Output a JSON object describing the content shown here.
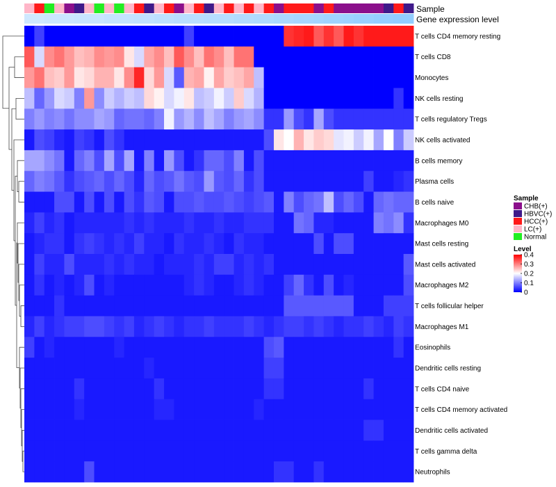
{
  "chart_data": {
    "type": "heatmap",
    "title": "",
    "track_labels": {
      "sample": "Sample",
      "expression": "Gene expression level"
    },
    "rows": [
      "T cells CD4 memory resting",
      "T cells CD8",
      "Monocytes",
      "NK cells resting",
      "T cells regulatory  Tregs",
      "NK cells activated",
      "B cells memory",
      "Plasma cells",
      "B cells naive",
      "Macrophages M0",
      "Mast cells resting",
      "Mast cells activated",
      "Macrophages M2",
      "T cells follicular helper",
      "Macrophages M1",
      "Eosinophils",
      "Dendritic cells resting",
      "T cells CD4 naive",
      "T cells CD4 memory activated",
      "Dendritic cells activated",
      "T cells gamma delta",
      "Neutrophils"
    ],
    "sample_groups": [
      "LC",
      "HCC",
      "Normal",
      "LC",
      "CHB",
      "HBVC",
      "LC",
      "Normal",
      "LC",
      "Normal",
      "LC",
      "HCC",
      "HBVC",
      "LC",
      "HCC",
      "CHB",
      "LC",
      "HCC",
      "HBVC",
      "LC",
      "HCC",
      "LC",
      "HCC",
      "LC",
      "HCC",
      "CHB",
      "HCC",
      "HCC",
      "HCC",
      "CHB",
      "HCC",
      "CHB",
      "CHB",
      "CHB",
      "CHB",
      "CHB",
      "HBVC",
      "HCC",
      "HBVC"
    ],
    "legend_sample": {
      "title": "Sample",
      "entries": [
        {
          "label": "CHB(+)",
          "color": "#8b0f8b"
        },
        {
          "label": "HBVC(+)",
          "color": "#3f1a8a"
        },
        {
          "label": "HCC(+)",
          "color": "#ff1a1a"
        },
        {
          "label": "LC(+)",
          "color": "#ffb6c8"
        },
        {
          "label": "Normal",
          "color": "#22ee22"
        }
      ]
    },
    "legend_level": {
      "title": "Level",
      "range": [
        0,
        0.4
      ],
      "ticks": [
        "0.4",
        "0.3",
        "0.2",
        "0.1",
        "0"
      ],
      "colors": {
        "low": "#0000ff",
        "mid": "#ffffff",
        "high": "#ff0000"
      }
    },
    "expression_level": [
      0.05,
      0.05,
      0.06,
      0.06,
      0.06,
      0.07,
      0.07,
      0.07,
      0.08,
      0.08,
      0.08,
      0.09,
      0.09,
      0.1,
      0.1,
      0.11,
      0.11,
      0.11,
      0.12,
      0.12,
      0.12,
      0.13,
      0.13,
      0.14,
      0.14,
      0.15,
      0.15,
      0.16,
      0.16,
      0.17,
      0.18,
      0.18,
      0.19,
      0.2,
      0.2,
      0.21,
      0.21,
      0.22,
      0.22
    ],
    "values": [
      [
        0,
        0.05,
        0,
        0,
        0,
        0,
        0,
        0,
        0,
        0,
        0,
        0,
        0,
        0,
        0,
        0,
        0.05,
        0,
        0,
        0,
        0,
        0,
        0,
        0,
        0,
        0,
        0.36,
        0.37,
        0.38,
        0.33,
        0.36,
        0.33,
        0.38,
        0.36,
        0.38,
        0.38,
        0.38,
        0.38,
        0.38
      ],
      [
        0.33,
        0.17,
        0.29,
        0.31,
        0.28,
        0.25,
        0.26,
        0.29,
        0.28,
        0.29,
        0.22,
        0.17,
        0.27,
        0.29,
        0.25,
        0.33,
        0.29,
        0.25,
        0.31,
        0.29,
        0.25,
        0.31,
        0.31,
        0,
        0,
        0,
        0,
        0,
        0,
        0,
        0,
        0,
        0,
        0,
        0,
        0,
        0,
        0,
        0
      ],
      [
        0.28,
        0.31,
        0.25,
        0.24,
        0.28,
        0.22,
        0.23,
        0.26,
        0.26,
        0.22,
        0.29,
        0.37,
        0.23,
        0.28,
        0.17,
        0.07,
        0.26,
        0.27,
        0.21,
        0.27,
        0.24,
        0.25,
        0.27,
        0.15,
        0,
        0,
        0,
        0,
        0,
        0,
        0,
        0,
        0,
        0,
        0,
        0,
        0,
        0,
        0
      ],
      [
        0.15,
        0.08,
        0.12,
        0.17,
        0.16,
        0.1,
        0.28,
        0.11,
        0.16,
        0.14,
        0.16,
        0.15,
        0.23,
        0.21,
        0.17,
        0.19,
        0.22,
        0.15,
        0.16,
        0.19,
        0.16,
        0.24,
        0.17,
        0.14,
        0,
        0,
        0,
        0,
        0,
        0,
        0,
        0,
        0,
        0,
        0,
        0,
        0,
        0.04,
        0
      ],
      [
        0.1,
        0.12,
        0.1,
        0.11,
        0.09,
        0.11,
        0.11,
        0.13,
        0.12,
        0.08,
        0.09,
        0.09,
        0.08,
        0.1,
        0.19,
        0.12,
        0.14,
        0.11,
        0.15,
        0.13,
        0.1,
        0.12,
        0.13,
        0.11,
        0.04,
        0.04,
        0.12,
        0.06,
        0.04,
        0.13,
        0.06,
        0.04,
        0.04,
        0.04,
        0.04,
        0.04,
        0.04,
        0.04,
        0.04
      ],
      [
        0.02,
        0.06,
        0.05,
        0.03,
        0.02,
        0.05,
        0.04,
        0.02,
        0.06,
        0.04,
        0.02,
        0.02,
        0.02,
        0.02,
        0.02,
        0.02,
        0.02,
        0.02,
        0.02,
        0.02,
        0.02,
        0.02,
        0.02,
        0.02,
        0.06,
        0.22,
        0.2,
        0.26,
        0.22,
        0.24,
        0.23,
        0.18,
        0.19,
        0.16,
        0.19,
        0.13,
        0.2,
        0.1,
        0.16
      ],
      [
        0.13,
        0.13,
        0.11,
        0.09,
        0.02,
        0.08,
        0.1,
        0.06,
        0.13,
        0.06,
        0.13,
        0.02,
        0.1,
        0.02,
        0.12,
        0.06,
        0.02,
        0.04,
        0.08,
        0.08,
        0.06,
        0.1,
        0.02,
        0.06,
        0.02,
        0.02,
        0.02,
        0.02,
        0.02,
        0.02,
        0.02,
        0.02,
        0.02,
        0.02,
        0.02,
        0.02,
        0.02,
        0.02,
        0.02
      ],
      [
        0.08,
        0.1,
        0.09,
        0.07,
        0.04,
        0.06,
        0.07,
        0.08,
        0.06,
        0.08,
        0.06,
        0.03,
        0.08,
        0.06,
        0.07,
        0.09,
        0.07,
        0.06,
        0.12,
        0.07,
        0.06,
        0.08,
        0.04,
        0.06,
        0.02,
        0.02,
        0.02,
        0.02,
        0.02,
        0.02,
        0.02,
        0.02,
        0.02,
        0.02,
        0.05,
        0.02,
        0.02,
        0.03,
        0.04
      ],
      [
        0.02,
        0.02,
        0.02,
        0.06,
        0.06,
        0.02,
        0.06,
        0.02,
        0.06,
        0.02,
        0.06,
        0.04,
        0.07,
        0.06,
        0.02,
        0.06,
        0.06,
        0.07,
        0.06,
        0.06,
        0.07,
        0.06,
        0.05,
        0.06,
        0.07,
        0.02,
        0.1,
        0.06,
        0.08,
        0.09,
        0.15,
        0.06,
        0.08,
        0.06,
        0.02,
        0.08,
        0.09,
        0.08,
        0.08
      ],
      [
        0.03,
        0.05,
        0.03,
        0.04,
        0.02,
        0.03,
        0.03,
        0.03,
        0.03,
        0.03,
        0.04,
        0.03,
        0.04,
        0.03,
        0.03,
        0.03,
        0.04,
        0.03,
        0.03,
        0.04,
        0.03,
        0.03,
        0.04,
        0.04,
        0.04,
        0.02,
        0.02,
        0.09,
        0.08,
        0.03,
        0.03,
        0.02,
        0.02,
        0.02,
        0.02,
        0.1,
        0.09,
        0.11,
        0.04
      ],
      [
        0.02,
        0.03,
        0.04,
        0.04,
        0.02,
        0.04,
        0.05,
        0.04,
        0.03,
        0.04,
        0.03,
        0.05,
        0.03,
        0.03,
        0.02,
        0.04,
        0.03,
        0.03,
        0.04,
        0.03,
        0.02,
        0.04,
        0.03,
        0.03,
        0.02,
        0.02,
        0.02,
        0.02,
        0.02,
        0.06,
        0.02,
        0.06,
        0.06,
        0.02,
        0.02,
        0.02,
        0.02,
        0.02,
        0.02
      ],
      [
        0.02,
        0.05,
        0.03,
        0.03,
        0.06,
        0.03,
        0.03,
        0.03,
        0.04,
        0.03,
        0.04,
        0.03,
        0.03,
        0.02,
        0.03,
        0.03,
        0.03,
        0.04,
        0.03,
        0.05,
        0.05,
        0.03,
        0.04,
        0.03,
        0.04,
        0.02,
        0.02,
        0.02,
        0.02,
        0.02,
        0.02,
        0.02,
        0.02,
        0.02,
        0.02,
        0.02,
        0.02,
        0.02,
        0.07
      ],
      [
        0.02,
        0.04,
        0.02,
        0.03,
        0.02,
        0.03,
        0.06,
        0.02,
        0.03,
        0.02,
        0.02,
        0.02,
        0.02,
        0.02,
        0.02,
        0.02,
        0.03,
        0.04,
        0.03,
        0.02,
        0.02,
        0.03,
        0.04,
        0.03,
        0.02,
        0.02,
        0.05,
        0.08,
        0.04,
        0.02,
        0.06,
        0.02,
        0.03,
        0.02,
        0.02,
        0.02,
        0.02,
        0.02,
        0.06
      ],
      [
        0.02,
        0.02,
        0.02,
        0.04,
        0.02,
        0.02,
        0.02,
        0.02,
        0.02,
        0.02,
        0.02,
        0.02,
        0.02,
        0.02,
        0.02,
        0.02,
        0.02,
        0.02,
        0.02,
        0.02,
        0.02,
        0.02,
        0.02,
        0.02,
        0.02,
        0.02,
        0.07,
        0.07,
        0.07,
        0.07,
        0.07,
        0.07,
        0.07,
        0.02,
        0.02,
        0.02,
        0.05,
        0.05,
        0.05
      ],
      [
        0.03,
        0.05,
        0.03,
        0.04,
        0.05,
        0.05,
        0.06,
        0.06,
        0.05,
        0.04,
        0.05,
        0.03,
        0.04,
        0.05,
        0.04,
        0.03,
        0.04,
        0.04,
        0.05,
        0.04,
        0.04,
        0.04,
        0.05,
        0.04,
        0.03,
        0.04,
        0.05,
        0.05,
        0.04,
        0.05,
        0.04,
        0.03,
        0.04,
        0.04,
        0.05,
        0.04,
        0.03,
        0.05,
        0.04
      ],
      [
        0.05,
        0.02,
        0.03,
        0.02,
        0.02,
        0.02,
        0.02,
        0.02,
        0.02,
        0.03,
        0.02,
        0.02,
        0.02,
        0.02,
        0.02,
        0.02,
        0.02,
        0.02,
        0.02,
        0.02,
        0.02,
        0.02,
        0.02,
        0.02,
        0.06,
        0.07,
        0.02,
        0.02,
        0.02,
        0.02,
        0.02,
        0.02,
        0.02,
        0.02,
        0.02,
        0.02,
        0.02,
        0.04,
        0.02
      ],
      [
        0.02,
        0.02,
        0.02,
        0.02,
        0.02,
        0.02,
        0.02,
        0.02,
        0.02,
        0.02,
        0.02,
        0.02,
        0.03,
        0.02,
        0.02,
        0.02,
        0.02,
        0.02,
        0.02,
        0.02,
        0.02,
        0.02,
        0.02,
        0.02,
        0.05,
        0.05,
        0.02,
        0.02,
        0.02,
        0.02,
        0.02,
        0.02,
        0.02,
        0.02,
        0.02,
        0.02,
        0.02,
        0.02,
        0.02
      ],
      [
        0.02,
        0.02,
        0.02,
        0.02,
        0.02,
        0.04,
        0.02,
        0.02,
        0.02,
        0.02,
        0.02,
        0.02,
        0.02,
        0.04,
        0.02,
        0.02,
        0.02,
        0.02,
        0.02,
        0.02,
        0.02,
        0.02,
        0.02,
        0.02,
        0.04,
        0.04,
        0.02,
        0.02,
        0.02,
        0.02,
        0.02,
        0.02,
        0.02,
        0.02,
        0.04,
        0.02,
        0.02,
        0.02,
        0.02
      ],
      [
        0.02,
        0.02,
        0.02,
        0.02,
        0.02,
        0.03,
        0.02,
        0.02,
        0.02,
        0.02,
        0.02,
        0.02,
        0.02,
        0.03,
        0.03,
        0.02,
        0.02,
        0.02,
        0.02,
        0.02,
        0.02,
        0.02,
        0.02,
        0.03,
        0.02,
        0.02,
        0.02,
        0.02,
        0.02,
        0.02,
        0.02,
        0.02,
        0.02,
        0.02,
        0.02,
        0.02,
        0.02,
        0.02,
        0.02
      ],
      [
        0.02,
        0.02,
        0.02,
        0.02,
        0.02,
        0.02,
        0.02,
        0.02,
        0.02,
        0.02,
        0.02,
        0.02,
        0.02,
        0.02,
        0.02,
        0.02,
        0.02,
        0.02,
        0.02,
        0.02,
        0.02,
        0.02,
        0.02,
        0.02,
        0.02,
        0.02,
        0.02,
        0.02,
        0.02,
        0.02,
        0.02,
        0.02,
        0.02,
        0.02,
        0.04,
        0.04,
        0.02,
        0.02,
        0.02
      ],
      [
        0.02,
        0.02,
        0.02,
        0.02,
        0.02,
        0.02,
        0.02,
        0.02,
        0.02,
        0.02,
        0.02,
        0.02,
        0.02,
        0.02,
        0.02,
        0.02,
        0.02,
        0.02,
        0.02,
        0.02,
        0.02,
        0.02,
        0.02,
        0.02,
        0.02,
        0.02,
        0.02,
        0.02,
        0.02,
        0.02,
        0.02,
        0.02,
        0.02,
        0.02,
        0.02,
        0.02,
        0.02,
        0.02,
        0.02
      ],
      [
        0.02,
        0.02,
        0.02,
        0.02,
        0.02,
        0.02,
        0.06,
        0.02,
        0.02,
        0.02,
        0.02,
        0.02,
        0.02,
        0.02,
        0.02,
        0.02,
        0.02,
        0.02,
        0.02,
        0.02,
        0.02,
        0.02,
        0.02,
        0.02,
        0.02,
        0.04,
        0.04,
        0.02,
        0.02,
        0.04,
        0.02,
        0.02,
        0.02,
        0.02,
        0.02,
        0.02,
        0.02,
        0.02,
        0.02
      ]
    ]
  }
}
